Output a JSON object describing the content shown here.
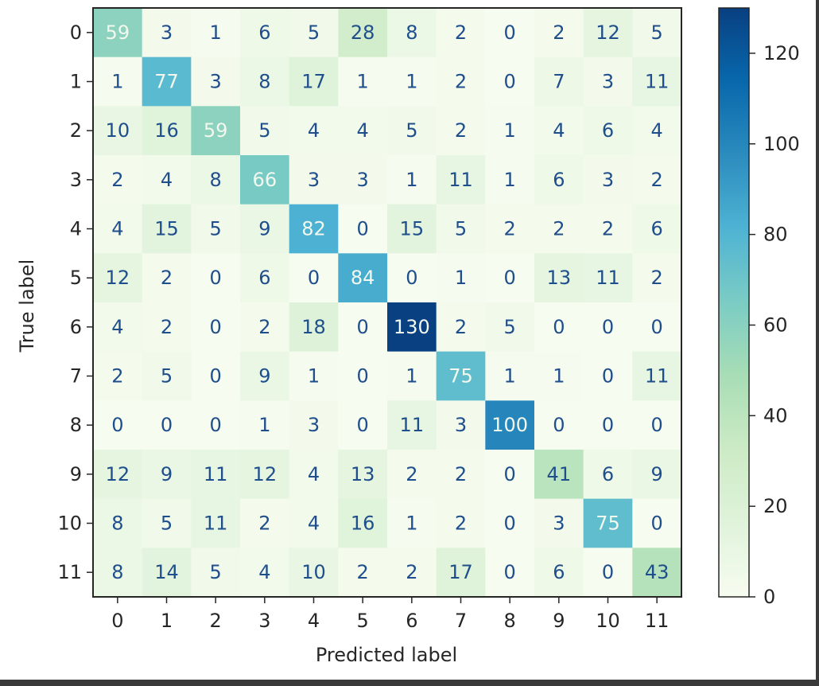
{
  "chart_data": {
    "type": "heatmap",
    "title": "",
    "xlabel": "Predicted label",
    "ylabel": "True label",
    "x_categories": [
      "0",
      "1",
      "2",
      "3",
      "4",
      "5",
      "6",
      "7",
      "8",
      "9",
      "10",
      "11"
    ],
    "y_categories": [
      "0",
      "1",
      "2",
      "3",
      "4",
      "5",
      "6",
      "7",
      "8",
      "9",
      "10",
      "11"
    ],
    "values": [
      [
        59,
        3,
        1,
        6,
        5,
        28,
        8,
        2,
        0,
        2,
        12,
        5
      ],
      [
        1,
        77,
        3,
        8,
        17,
        1,
        1,
        2,
        0,
        7,
        3,
        11
      ],
      [
        10,
        16,
        59,
        5,
        4,
        4,
        5,
        2,
        1,
        4,
        6,
        4
      ],
      [
        2,
        4,
        8,
        66,
        3,
        3,
        1,
        11,
        1,
        6,
        3,
        2
      ],
      [
        4,
        15,
        5,
        9,
        82,
        0,
        15,
        5,
        2,
        2,
        2,
        6
      ],
      [
        12,
        2,
        0,
        6,
        0,
        84,
        0,
        1,
        0,
        13,
        11,
        2
      ],
      [
        4,
        2,
        0,
        2,
        18,
        0,
        130,
        2,
        5,
        0,
        0,
        0
      ],
      [
        2,
        5,
        0,
        9,
        1,
        0,
        1,
        75,
        1,
        1,
        0,
        11
      ],
      [
        0,
        0,
        0,
        1,
        3,
        0,
        11,
        3,
        100,
        0,
        0,
        0
      ],
      [
        12,
        9,
        11,
        12,
        4,
        13,
        2,
        2,
        0,
        41,
        6,
        9
      ],
      [
        8,
        5,
        11,
        2,
        4,
        16,
        1,
        2,
        0,
        3,
        75,
        0
      ],
      [
        8,
        14,
        5,
        4,
        10,
        2,
        2,
        17,
        0,
        6,
        0,
        43
      ]
    ],
    "colormap": "GnBu",
    "color_range": [
      0,
      130
    ],
    "colorbar_ticks": [
      0,
      20,
      40,
      60,
      80,
      100,
      120
    ],
    "grid": false,
    "legend": "none"
  },
  "colors": {
    "dark_text": "#1f4e8c",
    "light_text": "#f2f8ee",
    "axis": "#262626",
    "frame": "#3a3a3a"
  }
}
